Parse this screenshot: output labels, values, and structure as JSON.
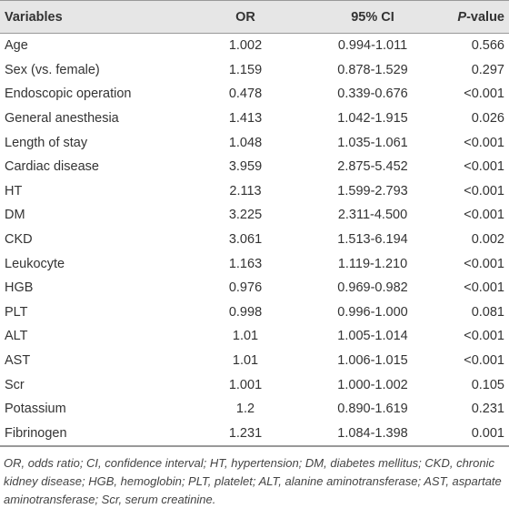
{
  "table": {
    "header": [
      "Variables",
      "OR",
      "95% CI",
      "P-value"
    ],
    "rows": [
      [
        "Age",
        "1.002",
        "0.994-1.011",
        "0.566"
      ],
      [
        "Sex (vs. female)",
        "1.159",
        "0.878-1.529",
        "0.297"
      ],
      [
        "Endoscopic operation",
        "0.478",
        "0.339-0.676",
        "<0.001"
      ],
      [
        "General anesthesia",
        "1.413",
        "1.042-1.915",
        "0.026"
      ],
      [
        "Length of stay",
        "1.048",
        "1.035-1.061",
        "<0.001"
      ],
      [
        "Cardiac disease",
        "3.959",
        "2.875-5.452",
        "<0.001"
      ],
      [
        "HT",
        "2.113",
        "1.599-2.793",
        "<0.001"
      ],
      [
        "DM",
        "3.225",
        "2.311-4.500",
        "<0.001"
      ],
      [
        "CKD",
        "3.061",
        "1.513-6.194",
        "0.002"
      ],
      [
        "Leukocyte",
        "1.163",
        "1.119-1.210",
        "<0.001"
      ],
      [
        "HGB",
        "0.976",
        "0.969-0.982",
        "<0.001"
      ],
      [
        "PLT",
        "0.998",
        "0.996-1.000",
        "0.081"
      ],
      [
        "ALT",
        "1.01",
        "1.005-1.014",
        "<0.001"
      ],
      [
        "AST",
        "1.01",
        "1.006-1.015",
        "<0.001"
      ],
      [
        "Scr",
        "1.001",
        "1.000-1.002",
        "0.105"
      ],
      [
        "Potassium",
        "1.2",
        "0.890-1.619",
        "0.231"
      ],
      [
        "Fibrinogen",
        "1.231",
        "1.084-1.398",
        "0.001"
      ]
    ],
    "footnote": "OR, odds ratio; CI, confidence interval; HT, hypertension; DM, diabetes mellitus; CKD, chronic kidney disease; HGB, hemoglobin; PLT, platelet; ALT, alanine aminotransferase; AST, aspartate aminotransferase; Scr, serum creatinine."
  }
}
